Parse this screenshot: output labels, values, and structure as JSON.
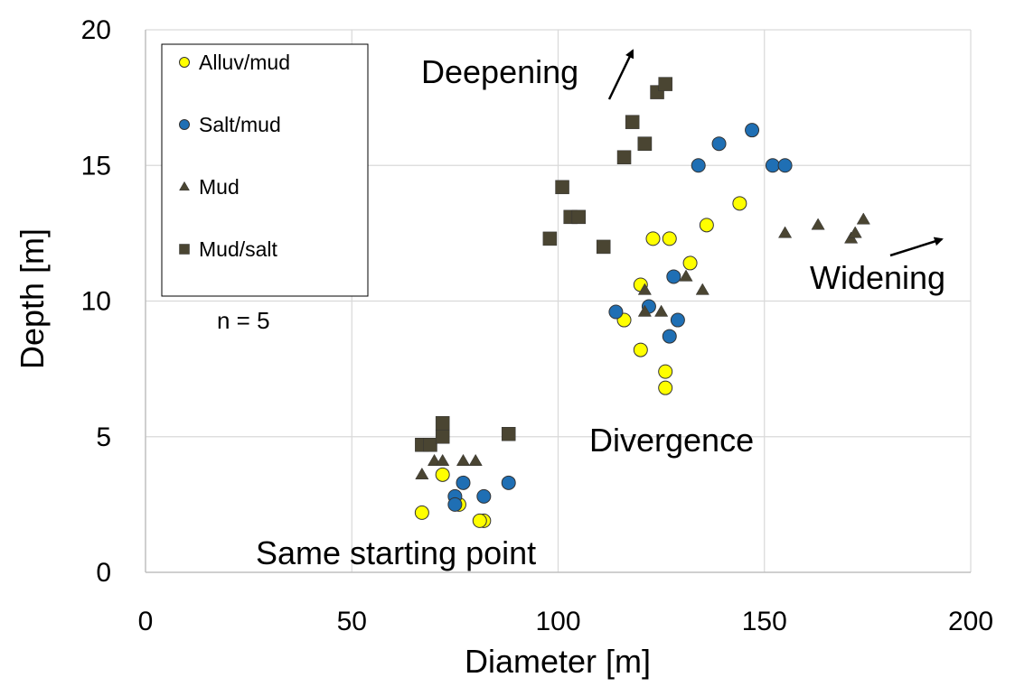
{
  "chart_data": {
    "type": "scatter",
    "xlabel": "Diameter [m]",
    "ylabel": "Depth [m]",
    "xlim": [
      0,
      200
    ],
    "ylim": [
      0,
      20
    ],
    "xticks": [
      0,
      50,
      100,
      150,
      200
    ],
    "yticks": [
      0,
      5,
      10,
      15,
      20
    ],
    "grid": true,
    "legend_position": "top-left",
    "note": "n = 5",
    "series": [
      {
        "name": "Alluv/mud",
        "marker": "circle",
        "color": "#ffff00",
        "x": [
          67,
          72,
          76,
          82,
          81,
          120,
          126,
          126,
          116,
          120,
          123,
          127,
          132,
          136,
          144
        ],
        "y": [
          2.2,
          3.6,
          2.5,
          1.9,
          1.9,
          8.2,
          7.4,
          6.8,
          9.3,
          10.6,
          12.3,
          12.3,
          11.4,
          12.8,
          13.6
        ]
      },
      {
        "name": "Salt/mud",
        "marker": "circle",
        "color": "#1f6fb4",
        "x": [
          77,
          75,
          75,
          82,
          88,
          114,
          122,
          127,
          129,
          128,
          134,
          139,
          147,
          152,
          155
        ],
        "y": [
          3.3,
          2.8,
          2.5,
          2.8,
          3.3,
          9.6,
          9.8,
          8.7,
          9.3,
          10.9,
          15.0,
          15.8,
          16.3,
          15.0,
          15.0
        ]
      },
      {
        "name": "Mud",
        "marker": "triangle",
        "color": "#4a4532",
        "x": [
          67,
          70,
          72,
          77,
          80,
          121,
          121,
          125,
          131,
          135,
          155,
          163,
          171,
          172,
          174
        ],
        "y": [
          3.6,
          4.1,
          4.1,
          4.1,
          4.1,
          10.4,
          9.6,
          9.6,
          10.9,
          10.4,
          12.5,
          12.8,
          12.3,
          12.5,
          13.0
        ]
      },
      {
        "name": "Mud/salt",
        "marker": "square",
        "color": "#4a4532",
        "x": [
          67,
          69,
          72,
          72,
          88,
          98,
          101,
          103,
          105,
          111,
          116,
          118,
          121,
          121,
          124,
          126
        ],
        "y": [
          4.7,
          4.7,
          5.5,
          5.0,
          5.1,
          12.3,
          14.2,
          13.1,
          13.1,
          12.0,
          15.3,
          16.6,
          15.8,
          15.8,
          17.7,
          18.0
        ]
      }
    ],
    "annotations": [
      {
        "text": "Deepening",
        "arrow": true
      },
      {
        "text": "Widening",
        "arrow": true
      },
      {
        "text": "Divergence",
        "arrow": false
      },
      {
        "text": "Same starting point",
        "arrow": false
      }
    ]
  }
}
